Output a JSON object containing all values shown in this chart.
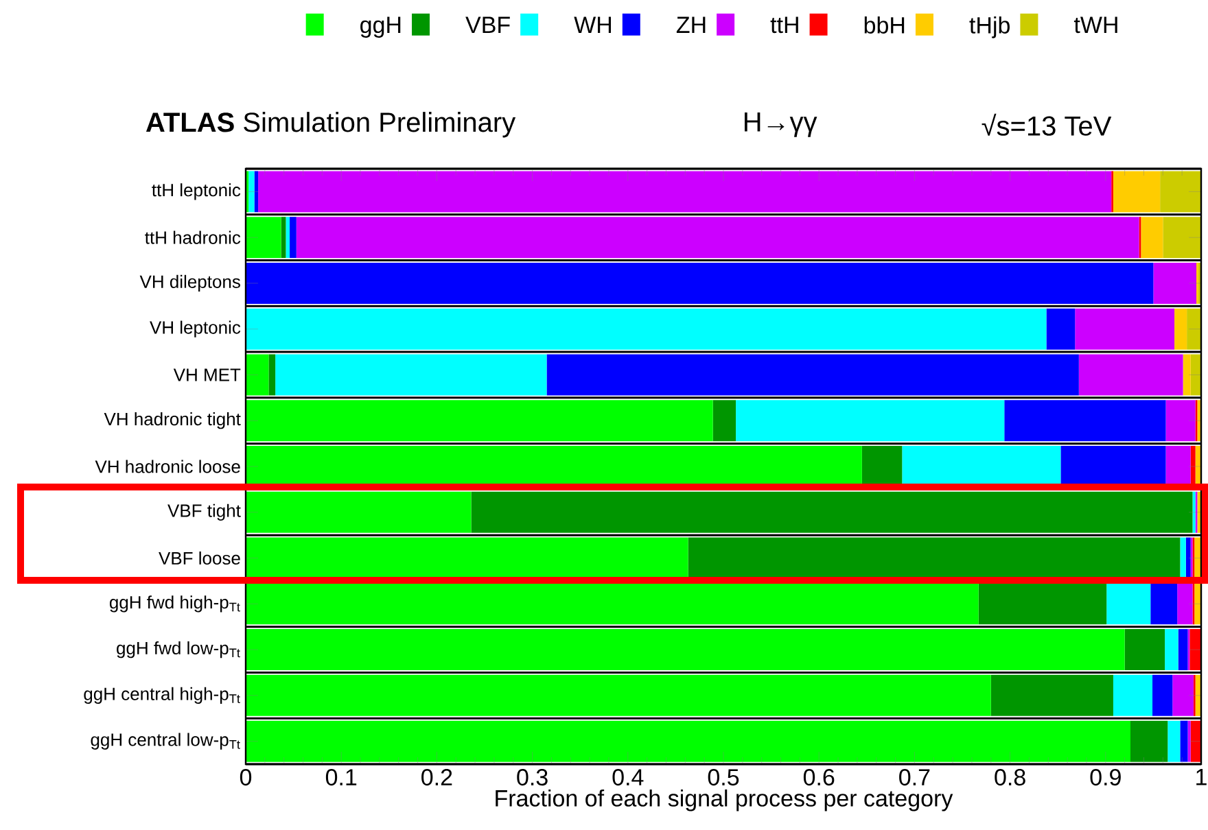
{
  "chart_data": {
    "type": "bar",
    "orientation": "horizontal",
    "stacked": true,
    "title": "**ATLAS** Simulation Preliminary",
    "annotations": [
      "H→γγ",
      "√s=13 TeV"
    ],
    "xlabel": "Fraction of each signal process per category",
    "categories": [
      "ttH leptonic",
      "ttH hadronic",
      "VH dileptons",
      "VH leptonic",
      "VH MET",
      "VH hadronic tight",
      "VH hadronic loose",
      "VBF tight",
      "VBF loose",
      "ggH fwd high-p$_{Tt}$",
      "ggH fwd low-p$_{Tt}$",
      "ggH central high-p$_{Tt}$",
      "ggH central low-p$_{Tt}$"
    ],
    "series": [
      {
        "name": "ggH",
        "color": "#00ff00",
        "values": [
          0.003,
          0.037,
          0,
          0,
          0.024,
          0.489,
          0.645,
          0.236,
          0.463,
          0.767,
          0.92,
          0.78,
          0.926
        ]
      },
      {
        "name": "VBF",
        "color": "#009600",
        "values": [
          0,
          0.005,
          0,
          0,
          0.007,
          0.024,
          0.042,
          0.755,
          0.515,
          0.134,
          0.042,
          0.128,
          0.039
        ]
      },
      {
        "name": "WH",
        "color": "#00ffff",
        "values": [
          0.006,
          0.004,
          0,
          0.838,
          0.284,
          0.281,
          0.166,
          0.003,
          0.006,
          0.046,
          0.014,
          0.041,
          0.013
        ]
      },
      {
        "name": "ZH",
        "color": "#0000ff",
        "values": [
          0.004,
          0.007,
          0.95,
          0.03,
          0.557,
          0.169,
          0.11,
          0,
          0.005,
          0.028,
          0.01,
          0.021,
          0.008
        ]
      },
      {
        "name": "ttH",
        "color": "#cc00ff",
        "values": [
          0.893,
          0.882,
          0.045,
          0.104,
          0.109,
          0.031,
          0.026,
          0.002,
          0.002,
          0.016,
          0.002,
          0.022,
          0.003
        ]
      },
      {
        "name": "bbH",
        "color": "#ff0000",
        "values": [
          0.002,
          0.002,
          0,
          0,
          0,
          0.002,
          0.005,
          0,
          0.002,
          0.002,
          0.012,
          0.002,
          0.011
        ]
      },
      {
        "name": "tHjb",
        "color": "#ffcc00",
        "values": [
          0.049,
          0.023,
          0.002,
          0.013,
          0.008,
          0.004,
          0.006,
          0.004,
          0.007,
          0.007,
          0,
          0.006,
          0
        ]
      },
      {
        "name": "tWH",
        "color": "#cccc00",
        "values": [
          0.043,
          0.04,
          0.003,
          0.015,
          0.011,
          0,
          0,
          0,
          0,
          0,
          0,
          0,
          0
        ]
      }
    ],
    "xlim": [
      0,
      1
    ],
    "xticks": [
      0,
      0.1,
      0.2,
      0.3,
      0.4,
      0.5,
      0.6,
      0.7,
      0.8,
      0.9,
      1
    ],
    "legend": "top"
  }
}
